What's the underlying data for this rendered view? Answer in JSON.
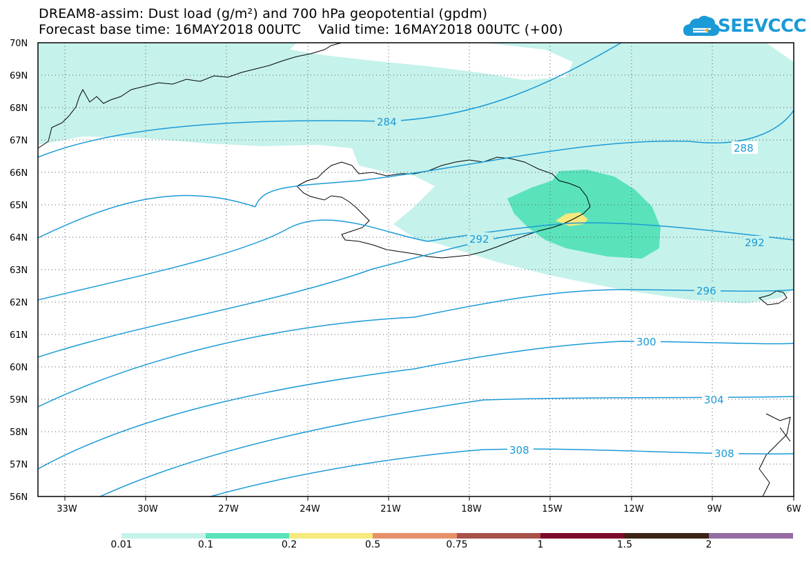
{
  "header": {
    "title_line1": "DREAM8-assim: Dust load (g/m²) and 700 hPa geopotential (gpdm)",
    "title_line2": "Forecast base time: 16MAY2018 00UTC    Valid time: 16MAY2018 00UTC (+00)"
  },
  "logo": {
    "text": "SEEVCCC",
    "icon": "cloud-icon",
    "color": "#1a9ad6"
  },
  "axes": {
    "lat_labels": [
      "70N",
      "69N",
      "68N",
      "67N",
      "66N",
      "65N",
      "64N",
      "63N",
      "62N",
      "61N",
      "60N",
      "59N",
      "58N",
      "57N",
      "56N"
    ],
    "lon_labels": [
      "33W",
      "30W",
      "27W",
      "24W",
      "21W",
      "18W",
      "15W",
      "12W",
      "9W",
      "6W"
    ]
  },
  "contours": {
    "color": "#1a9ad6",
    "labels": [
      "284",
      "288",
      "292",
      "292",
      "296",
      "300",
      "304",
      "308",
      "308"
    ]
  },
  "legend": {
    "colors": [
      "#c6f2ec",
      "#5ae3bb",
      "#f6e97d",
      "#e89069",
      "#a8524a",
      "#7d0a2c",
      "#3b2415",
      "#946ca3"
    ],
    "labels": [
      "0.01",
      "0.1",
      "0.2",
      "0.5",
      "0.75",
      "1",
      "1.5",
      "2"
    ]
  }
}
